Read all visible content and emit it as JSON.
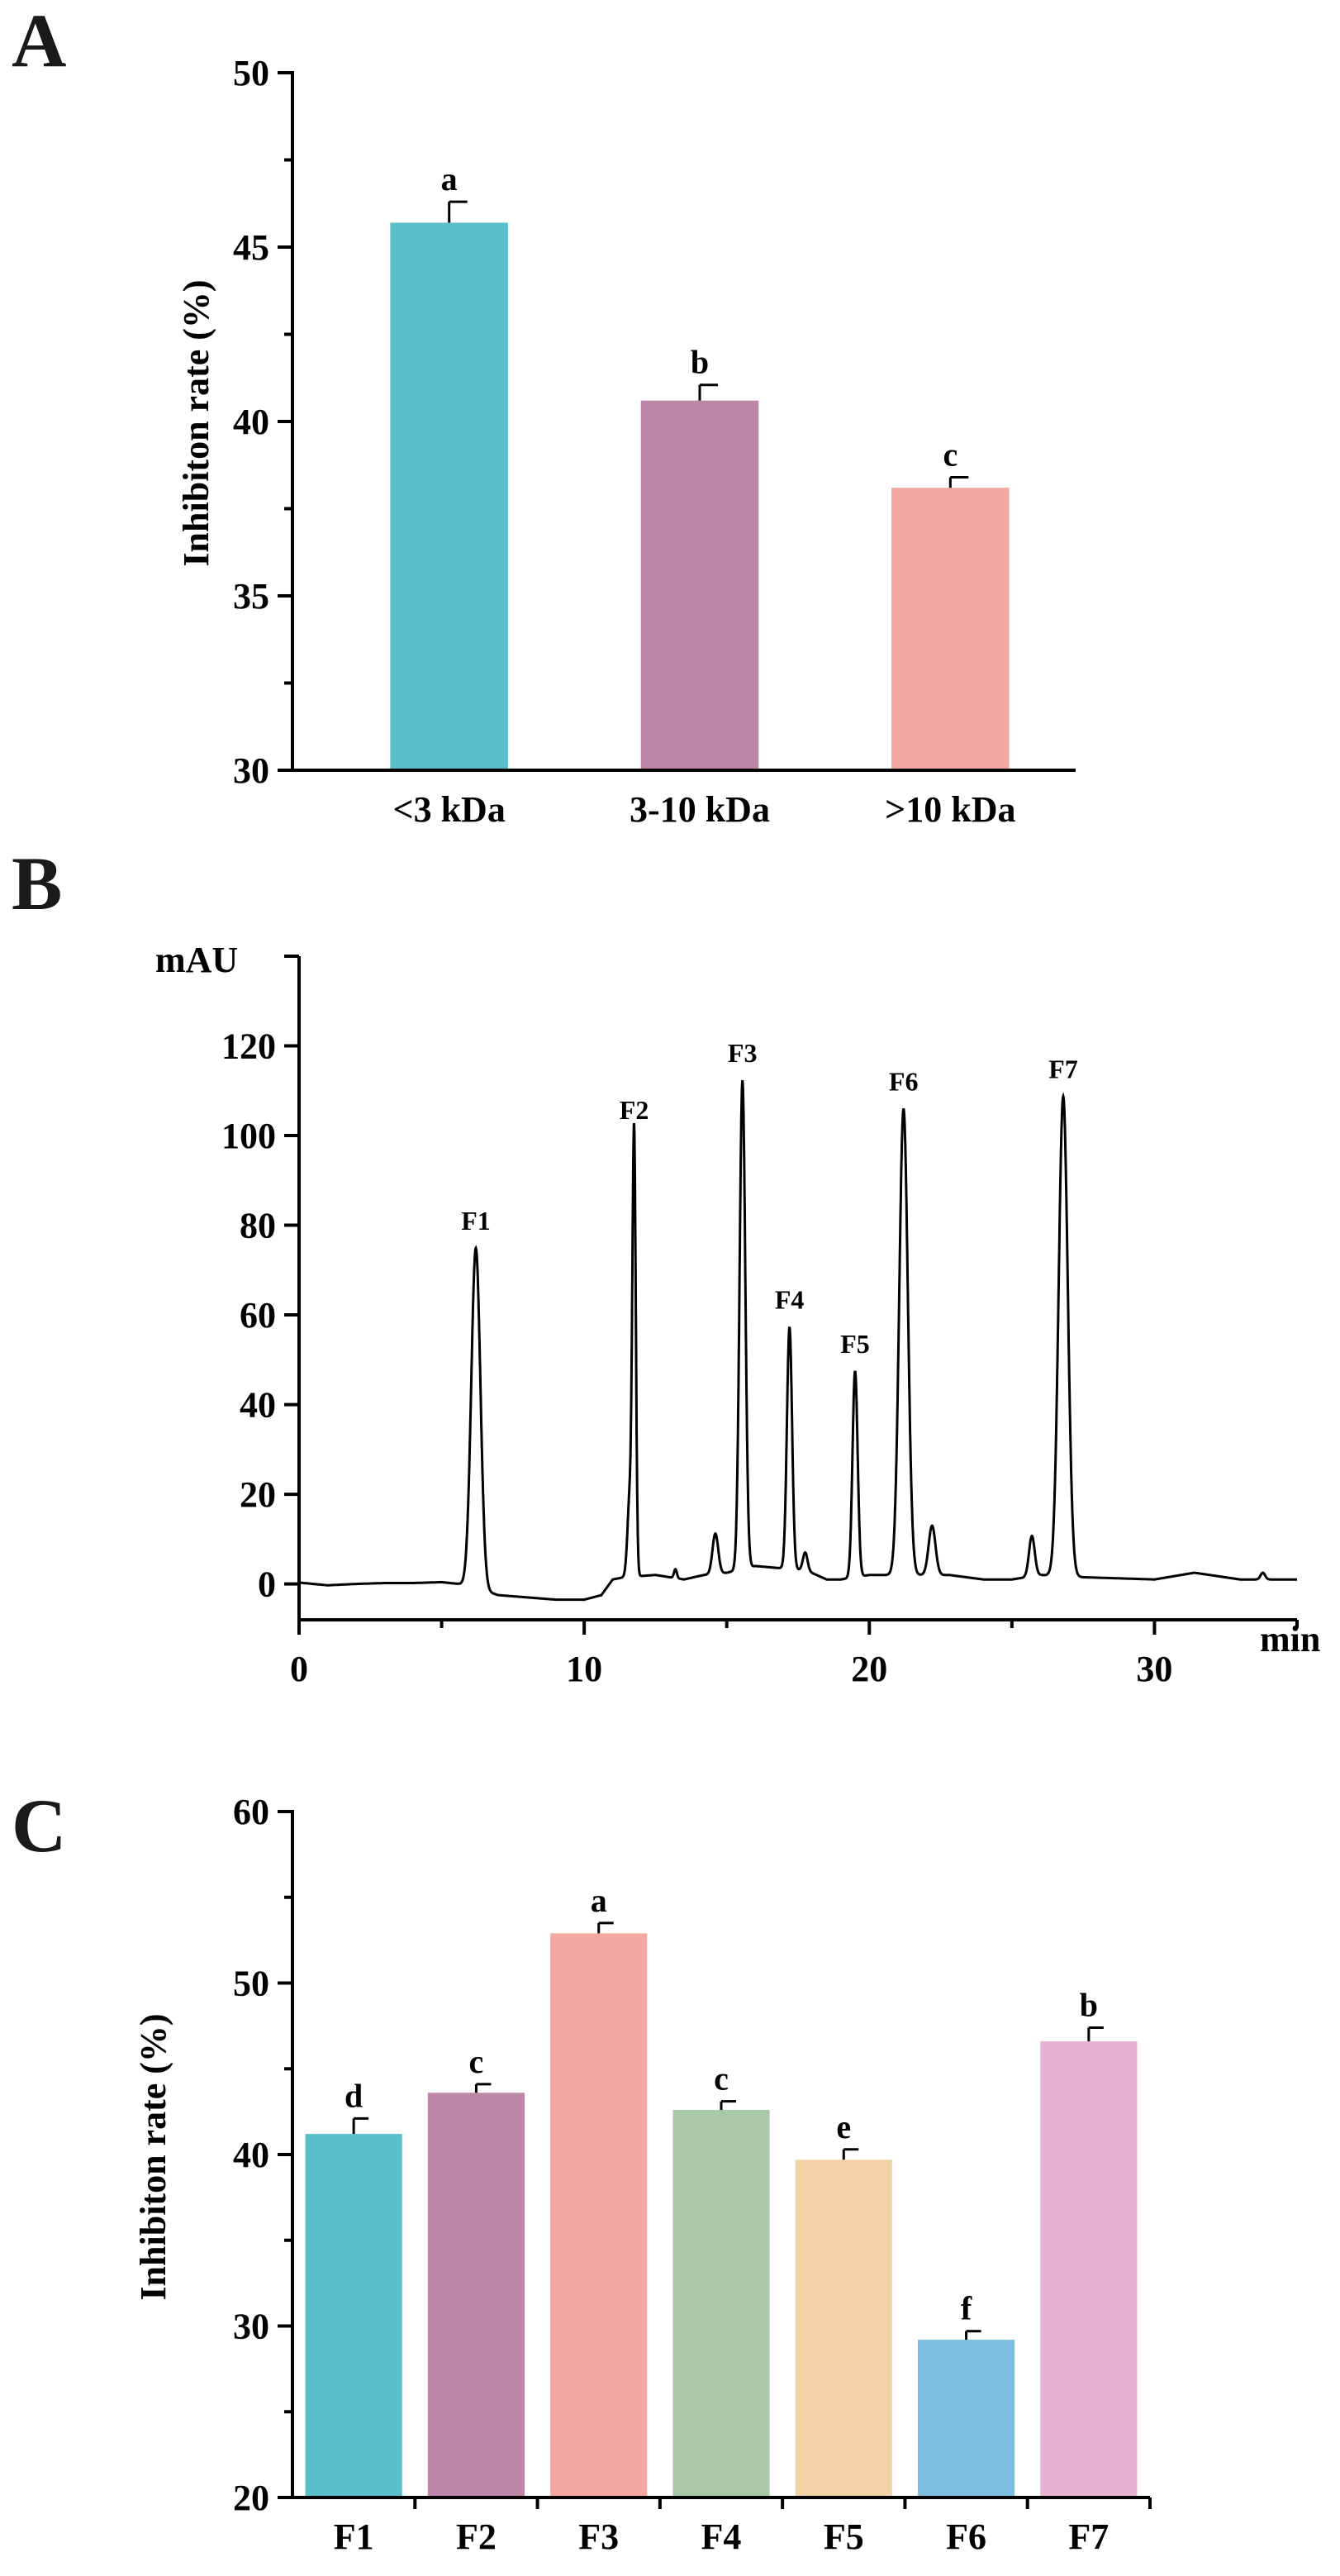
{
  "panels": {
    "a": {
      "letter": "A"
    },
    "b": {
      "letter": "B"
    },
    "c": {
      "letter": "C"
    }
  },
  "chart_data": [
    {
      "type": "bar",
      "panel": "A",
      "title": "",
      "xlabel": "",
      "ylabel": "Inhibiton rate (%)",
      "ylim": [
        30,
        50
      ],
      "yticks": [
        30,
        35,
        40,
        45,
        50
      ],
      "categories": [
        "<3 kDa",
        "3-10 kDa",
        ">10 kDa"
      ],
      "values": [
        45.7,
        40.6,
        38.1
      ],
      "errors": [
        0.6,
        0.45,
        0.3
      ],
      "significance": [
        "a",
        "b",
        "c"
      ],
      "colors": [
        "#5bbfcb",
        "#be87a9",
        "#f3a9a1"
      ]
    },
    {
      "type": "line",
      "panel": "B",
      "title": "",
      "xlabel": "min",
      "ylabel": "mAU",
      "xlim": [
        0,
        35
      ],
      "ylim": [
        -8,
        140
      ],
      "xticks": [
        0,
        10,
        20,
        30
      ],
      "yticks": [
        0,
        20,
        40,
        60,
        80,
        100,
        120
      ],
      "baseline": [
        [
          0,
          0.3
        ],
        [
          1,
          -0.3
        ],
        [
          2,
          0
        ],
        [
          3,
          0.2
        ],
        [
          4,
          0.2
        ],
        [
          5,
          0.4
        ],
        [
          5.6,
          0
        ],
        [
          7,
          -2.5
        ],
        [
          8,
          -3
        ],
        [
          9,
          -3.5
        ],
        [
          10,
          -3.5
        ],
        [
          10.6,
          -2.5
        ],
        [
          11,
          1
        ],
        [
          11.4,
          1.5
        ],
        [
          12.5,
          2
        ],
        [
          13.5,
          1
        ],
        [
          14.2,
          2
        ],
        [
          15,
          2.5
        ],
        [
          16,
          4
        ],
        [
          17.8,
          3
        ],
        [
          18.5,
          1
        ],
        [
          19,
          1
        ],
        [
          20,
          2
        ],
        [
          22.8,
          2
        ],
        [
          24,
          1
        ],
        [
          25,
          1
        ],
        [
          26,
          2
        ],
        [
          27.5,
          1.5
        ],
        [
          30,
          1
        ],
        [
          31.4,
          2.5
        ],
        [
          33,
          1
        ],
        [
          35,
          1
        ]
      ],
      "peaks": [
        {
          "name": "F1",
          "x": 6.2,
          "height": 76,
          "width": 0.16
        },
        {
          "name": "F2",
          "x": 11.75,
          "height": 98,
          "width": 0.06
        },
        {
          "name": "",
          "x": 11.6,
          "height": 18,
          "width": 0.08
        },
        {
          "name": "",
          "x": 13.2,
          "height": 2,
          "width": 0.05
        },
        {
          "name": "",
          "x": 14.6,
          "height": 9,
          "width": 0.1
        },
        {
          "name": "F3",
          "x": 15.55,
          "height": 109,
          "width": 0.1
        },
        {
          "name": "F4",
          "x": 17.2,
          "height": 54,
          "width": 0.09
        },
        {
          "name": "",
          "x": 17.75,
          "height": 4,
          "width": 0.08
        },
        {
          "name": "F5",
          "x": 19.5,
          "height": 46,
          "width": 0.09
        },
        {
          "name": "F6",
          "x": 21.2,
          "height": 104,
          "width": 0.15
        },
        {
          "name": "",
          "x": 22.2,
          "height": 11,
          "width": 0.12
        },
        {
          "name": "",
          "x": 25.7,
          "height": 9,
          "width": 0.1
        },
        {
          "name": "F7",
          "x": 26.8,
          "height": 107,
          "width": 0.16
        },
        {
          "name": "",
          "x": 33.8,
          "height": 1.5,
          "width": 0.08
        }
      ]
    },
    {
      "type": "bar",
      "panel": "C",
      "title": "",
      "xlabel": "",
      "ylabel": "Inhibiton rate (%)",
      "ylim": [
        20,
        60
      ],
      "yticks": [
        20,
        30,
        40,
        50,
        60
      ],
      "categories": [
        "F1",
        "F2",
        "F3",
        "F4",
        "F5",
        "F6",
        "F7"
      ],
      "values": [
        41.2,
        43.6,
        52.9,
        42.6,
        39.7,
        29.2,
        46.6
      ],
      "errors": [
        0.9,
        0.5,
        0.6,
        0.5,
        0.6,
        0.5,
        0.8
      ],
      "significance": [
        "d",
        "c",
        "a",
        "c",
        "e",
        "f",
        "b"
      ],
      "colors": [
        "#5bbfcb",
        "#be87a9",
        "#f3a9a1",
        "#a9c9a6",
        "#f2d3a8",
        "#7cbfe0",
        "#e6b1d3"
      ]
    }
  ]
}
